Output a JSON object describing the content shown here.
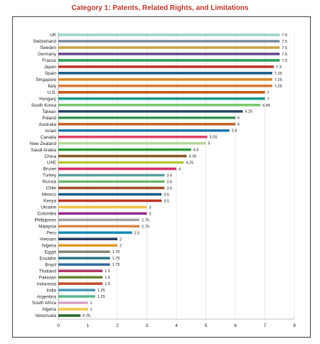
{
  "chart_data": {
    "type": "bar",
    "orientation": "horizontal",
    "title": "Category 1: Patents, Related Rights, and Limitations",
    "xlabel": "",
    "ylabel": "",
    "xlim": [
      0,
      8
    ],
    "xticks": [
      0,
      1,
      2,
      3,
      4,
      5,
      6,
      7,
      8
    ],
    "grid": true,
    "categories": [
      "UK",
      "Switzerland",
      "Sweden",
      "Germany",
      "France",
      "Japan",
      "Spain",
      "Singapore",
      "Italy",
      "U.S.",
      "Hungary",
      "South Korea",
      "Taiwan",
      "Poland",
      "Australia",
      "Israel",
      "Canada",
      "New Zealand",
      "Saudi Arabia",
      "China",
      "UAE",
      "Brunei",
      "Turkey",
      "Russia",
      "Chile",
      "Mexico",
      "Kenya",
      "Ukraine",
      "Colombia",
      "Philippines",
      "Malaysia",
      "Peru",
      "Vietnam",
      "Nigeria",
      "Egypt",
      "Ecuador",
      "Brazil",
      "Thailand",
      "Pakistan",
      "Indonesia",
      "India",
      "Argentina",
      "South Africa",
      "Algeria",
      "Venezuela"
    ],
    "values": [
      7.5,
      7.5,
      7.5,
      7.5,
      7.5,
      7.3,
      7.25,
      7.25,
      7.25,
      7,
      7,
      6.85,
      6.25,
      6,
      6,
      5.8,
      5.05,
      5,
      4.5,
      4.35,
      4.25,
      4,
      3.6,
      3.6,
      3.6,
      3.5,
      3.5,
      3,
      3,
      2.75,
      2.75,
      2.5,
      2,
      2,
      1.75,
      1.75,
      1.75,
      1.5,
      1.5,
      1.5,
      1.25,
      1.25,
      1,
      1,
      0.75
    ],
    "value_labels": [
      "7.5",
      "7.5",
      "7.5",
      "7.5",
      "7.5",
      "7.3",
      "7.25",
      "7.25",
      "7.25",
      "7",
      "7",
      "6.85",
      "6.25",
      "6",
      "6",
      "5.8",
      "5.05",
      "5",
      "4.5",
      "4.35",
      "4.25",
      "4",
      "3.6",
      "3.6",
      "3.6",
      "3.5",
      "3.5",
      "3",
      "3",
      "2.75",
      "2.75",
      "2.5",
      "2",
      "2",
      "1.75",
      "1.75",
      "1.75",
      "1.5",
      "1.5",
      "1.5",
      "1.25",
      "1.25",
      "1",
      "1",
      "0.75"
    ],
    "colors": [
      "#9fd2cf",
      "#7a8fa0",
      "#c9a54a",
      "#6a4c93",
      "#2e9e5a",
      "#c0392b",
      "#1f5f8b",
      "#e08a2c",
      "#d97a3a",
      "#c45a1a",
      "#1f9c8f",
      "#7bc96f",
      "#2b4a66",
      "#3a9a5a",
      "#c8642a",
      "#1f77b4",
      "#e0446a",
      "#b5d99c",
      "#2e9e3a",
      "#8b5a2b",
      "#b8c93a",
      "#d6336c",
      "#5f9ea0",
      "#6fb96f",
      "#a0522d",
      "#1f5f8b",
      "#c0392b",
      "#f2c14e",
      "#9b2d8f",
      "#a3a3a3",
      "#d98a4a",
      "#1a8fb5",
      "#2c3e66",
      "#e09a2c",
      "#8a8a7a",
      "#2e7a8a",
      "#3a6fa0",
      "#b03a6a",
      "#6a8a3a",
      "#c0522d",
      "#4a9ab5",
      "#5fb98f",
      "#d9a5c8",
      "#f2c94e",
      "#2e6a2e"
    ]
  }
}
